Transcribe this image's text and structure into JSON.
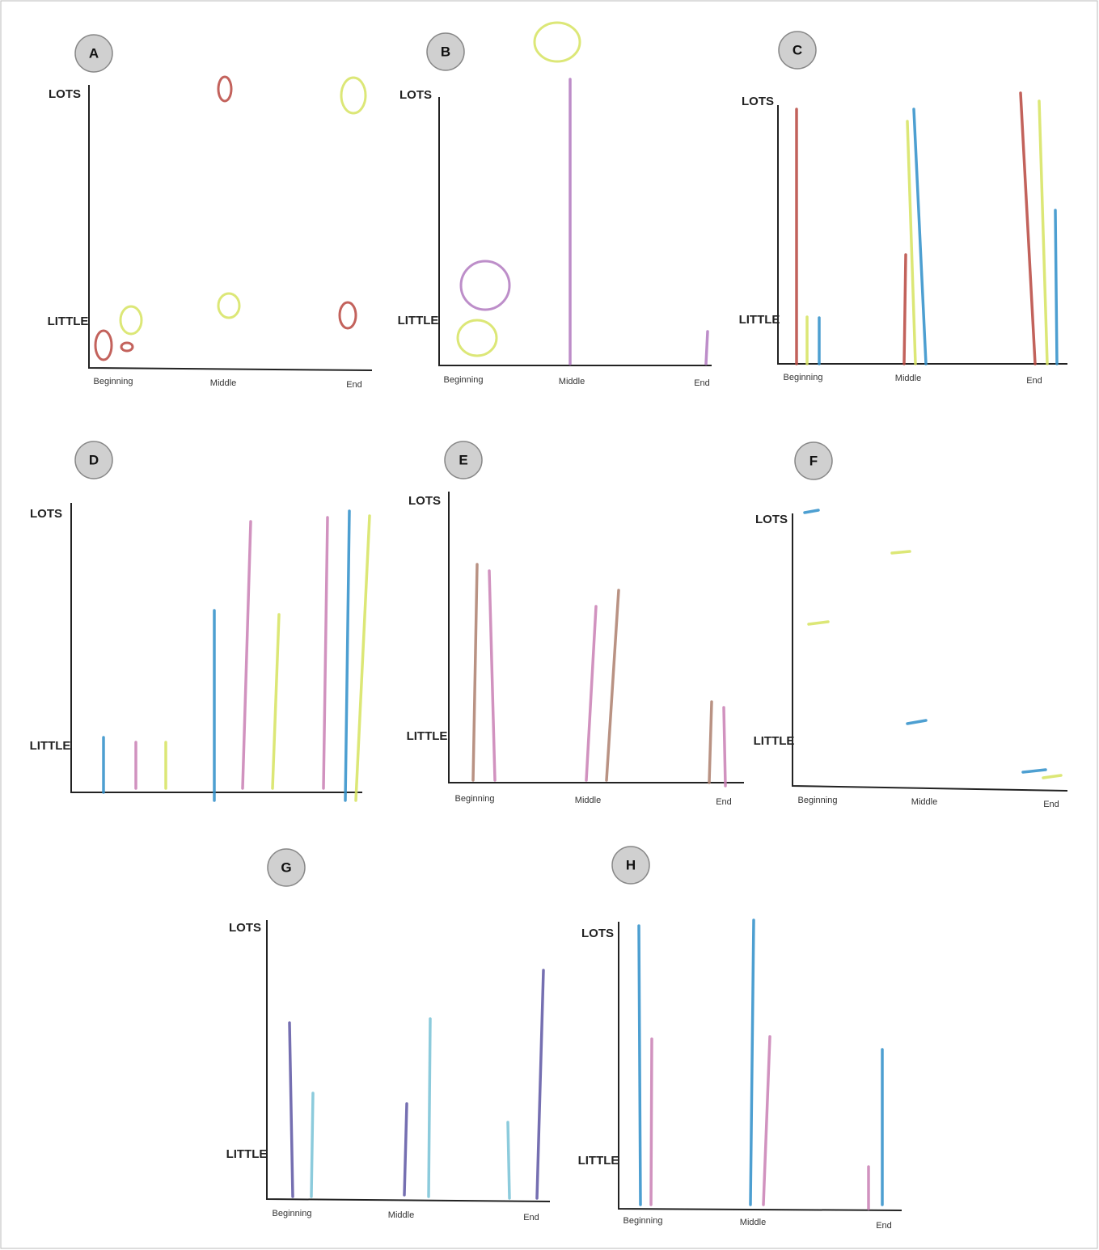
{
  "panels": [
    {
      "label": "A",
      "y_top": "LOTS",
      "y_bottom": "LITTLE",
      "x_labels": [
        "Beginning",
        "Middle",
        "End"
      ]
    },
    {
      "label": "B",
      "y_top": "LOTS",
      "y_bottom": "LITTLE",
      "x_labels": [
        "Beginning",
        "Middle",
        "End"
      ]
    },
    {
      "label": "C",
      "y_top": "LOTS",
      "y_bottom": "LITTLE",
      "x_labels": [
        "Beginning",
        "Middle",
        "End"
      ]
    },
    {
      "label": "D",
      "y_top": "LOTS",
      "y_bottom": "LITTLE"
    },
    {
      "label": "E",
      "y_top": "LOTS",
      "y_bottom": "LITTLE",
      "x_labels": [
        "Beginning",
        "Middle",
        "End"
      ]
    },
    {
      "label": "F",
      "y_top": "LOTS",
      "y_bottom": "LITTLE",
      "x_labels": [
        "Beginning",
        "Middle",
        "End"
      ]
    },
    {
      "label": "G",
      "y_top": "LOTS",
      "y_bottom": "LITTLE",
      "x_labels": [
        "Beginning",
        "Middle",
        "End"
      ]
    },
    {
      "label": "H",
      "y_top": "LOTS",
      "y_bottom": "LITTLE",
      "x_labels": [
        "Beginning",
        "Middle",
        "End"
      ]
    }
  ]
}
